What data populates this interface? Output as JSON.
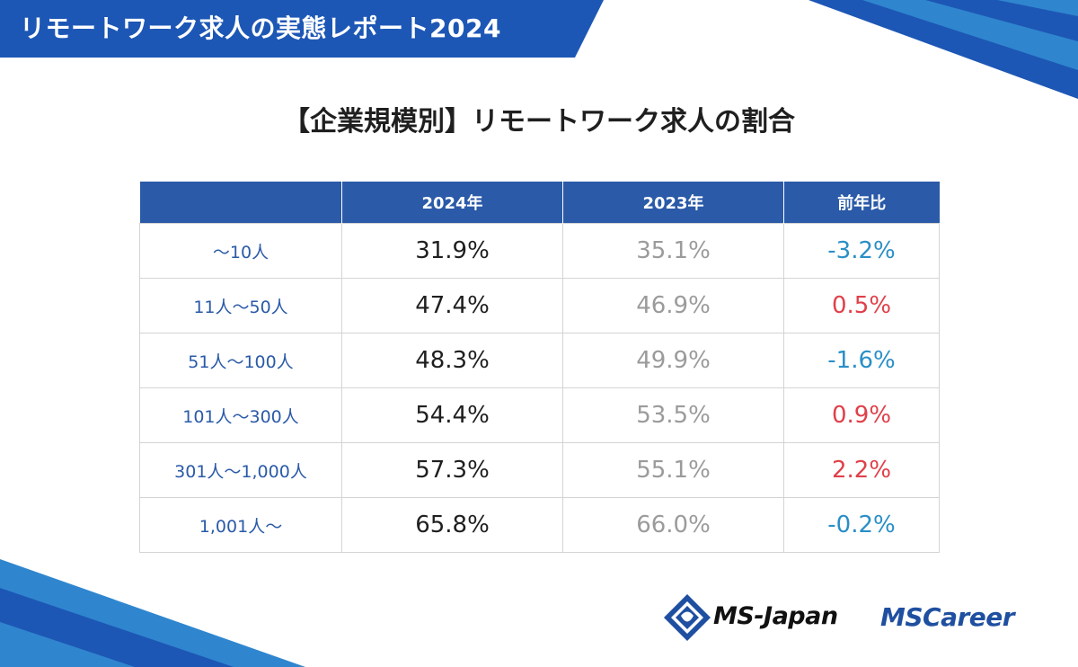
{
  "header": {
    "banner_title": "リモートワーク求人の実態レポート2024",
    "subtitle": "【企業規模別】リモートワーク求人の割合"
  },
  "table": {
    "columns": [
      "",
      "2024年",
      "2023年",
      "前年比"
    ],
    "rows": [
      {
        "size": "～10人",
        "y2024": "31.9%",
        "y2023": "35.1%",
        "diff": "-3.2%",
        "trend": "negative"
      },
      {
        "size": "11人～50人",
        "y2024": "47.4%",
        "y2023": "46.9%",
        "diff": "0.5%",
        "trend": "positive"
      },
      {
        "size": "51人～100人",
        "y2024": "48.3%",
        "y2023": "49.9%",
        "diff": "-1.6%",
        "trend": "negative"
      },
      {
        "size": "101人～300人",
        "y2024": "54.4%",
        "y2023": "53.5%",
        "diff": "0.9%",
        "trend": "positive"
      },
      {
        "size": "301人～1,000人",
        "y2024": "57.3%",
        "y2023": "55.1%",
        "diff": "2.2%",
        "trend": "positive"
      },
      {
        "size": "1,001人～",
        "y2024": "65.8%",
        "y2023": "66.0%",
        "diff": "-0.2%",
        "trend": "negative"
      }
    ]
  },
  "logos": {
    "msjapan": "MS-Japan",
    "mscareer": "MSCareer"
  },
  "colors": {
    "brand_blue": "#2a5aa8",
    "banner_blue": "#1d57b5",
    "negative": "#2a8fc6",
    "positive": "#e0404a",
    "value_2024": "#1f1f1f",
    "value_2023": "#9b9b9b"
  }
}
